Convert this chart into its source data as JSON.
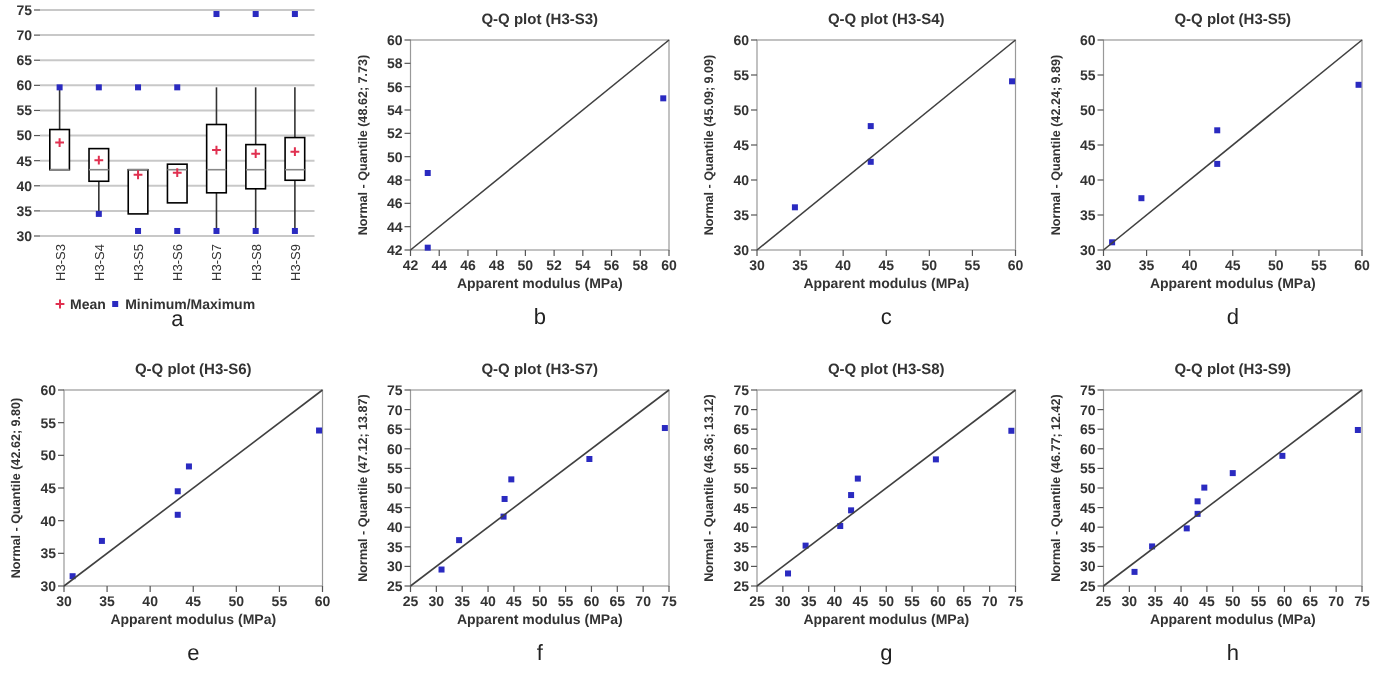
{
  "chart_data": [
    {
      "type": "box",
      "categories": [
        "H3-S3",
        "H3-S4",
        "H3-S5",
        "H3-S6",
        "H3-S7",
        "H3-S8",
        "H3-S9"
      ],
      "boxes": [
        {
          "low": 43.2,
          "q1": 43.2,
          "median": 43.2,
          "q3": 51.2,
          "high": 59.6
        },
        {
          "low": 34.4,
          "q1": 40.9,
          "median": 43.2,
          "q3": 47.4,
          "high": 47.4
        },
        {
          "low": 34.4,
          "q1": 34.4,
          "median": 43.2,
          "q3": 43.2,
          "high": 43.2
        },
        {
          "low": 36.6,
          "q1": 36.6,
          "median": 43.2,
          "q3": 44.3,
          "high": 44.3
        },
        {
          "low": 31,
          "q1": 38.6,
          "median": 43.2,
          "q3": 52.2,
          "high": 59.6
        },
        {
          "low": 31,
          "q1": 39.4,
          "median": 43.2,
          "q3": 48.2,
          "high": 59.6
        },
        {
          "low": 31,
          "q1": 41.1,
          "median": 43.2,
          "q3": 49.6,
          "high": 59.6
        }
      ],
      "series": [
        {
          "type": "scatter",
          "name": "Mean",
          "color": "#e03050",
          "marker": "cross",
          "x": [
            "H3-S3",
            "H3-S4",
            "H3-S5",
            "H3-S6",
            "H3-S7",
            "H3-S8",
            "H3-S9"
          ],
          "values": [
            48.6,
            45.1,
            42.2,
            42.6,
            47.1,
            46.4,
            46.8
          ]
        },
        {
          "type": "scatter",
          "name": "Minimum/Maximum",
          "color": "#2a2ac0",
          "marker": "square",
          "x": [
            "H3-S3",
            "H3-S4",
            "H3-S4",
            "H3-S5",
            "H3-S5",
            "H3-S6",
            "H3-S6",
            "H3-S7",
            "H3-S7",
            "H3-S8",
            "H3-S8",
            "H3-S9",
            "H3-S9"
          ],
          "values": [
            59.6,
            34.4,
            59.6,
            31,
            59.6,
            31,
            59.6,
            31,
            74.2,
            31,
            74.2,
            31,
            74.2
          ]
        }
      ],
      "ylim": [
        30,
        75
      ],
      "yticks": [
        30,
        35,
        40,
        45,
        50,
        55,
        60,
        65,
        70,
        75
      ],
      "grid": "y",
      "legend": "bottom",
      "annotations": [
        "a"
      ]
    },
    {
      "type": "scatter",
      "title": "Q-Q plot (H3-S3)",
      "xlabel": "Apparent modulus (MPa)",
      "ylabel": "Normal - Quantile (48.62; 7.73)",
      "xlim": [
        42,
        60
      ],
      "xticks": [
        42,
        44,
        46,
        48,
        50,
        52,
        54,
        56,
        58,
        60
      ],
      "ylim": [
        42,
        60
      ],
      "yticks": [
        42,
        44,
        46,
        48,
        50,
        52,
        54,
        56,
        58,
        60
      ],
      "series": [
        {
          "color": "#2a2ac0",
          "marker": "square",
          "x": [
            43.2,
            43.2,
            59.6
          ],
          "values": [
            42.2,
            48.6,
            55.0
          ]
        },
        {
          "type": "line",
          "color": "#404040",
          "x": [
            42,
            60
          ],
          "values": [
            42,
            60
          ]
        }
      ],
      "annotations": [
        "b"
      ]
    },
    {
      "type": "scatter",
      "title": "Q-Q plot (H3-S4)",
      "xlabel": "Apparent modulus (MPa)",
      "ylabel": "Normal - Quantile (45.09; 9.09)",
      "xlim": [
        30,
        60
      ],
      "xticks": [
        30,
        35,
        40,
        45,
        50,
        55,
        60
      ],
      "ylim": [
        30,
        60
      ],
      "yticks": [
        30,
        35,
        40,
        45,
        50,
        55,
        60
      ],
      "series": [
        {
          "color": "#2a2ac0",
          "marker": "square",
          "x": [
            34.4,
            43.2,
            43.2,
            59.6
          ],
          "values": [
            36.1,
            42.6,
            47.7,
            54.1
          ]
        },
        {
          "type": "line",
          "color": "#404040",
          "x": [
            30,
            60
          ],
          "values": [
            30,
            60
          ]
        }
      ],
      "annotations": [
        "c"
      ]
    },
    {
      "type": "scatter",
      "title": "Q-Q plot (H3-S5)",
      "xlabel": "Apparent modulus (MPa)",
      "ylabel": "Normal - Quantile (42.24; 9.89)",
      "xlim": [
        30,
        60
      ],
      "xticks": [
        30,
        35,
        40,
        45,
        50,
        55,
        60
      ],
      "ylim": [
        30,
        60
      ],
      "yticks": [
        30,
        35,
        40,
        45,
        50,
        55,
        60
      ],
      "series": [
        {
          "color": "#2a2ac0",
          "marker": "square",
          "x": [
            31,
            34.4,
            43.2,
            43.2,
            59.6
          ],
          "values": [
            31.1,
            37.4,
            42.3,
            47.1,
            53.6
          ]
        },
        {
          "type": "line",
          "color": "#404040",
          "x": [
            30,
            60
          ],
          "values": [
            30,
            60
          ]
        }
      ],
      "annotations": [
        "d"
      ]
    },
    {
      "type": "scatter",
      "title": "Q-Q plot (H3-S6)",
      "xlabel": "Apparent modulus (MPa)",
      "ylabel": "Normal - Quantile (42.62; 9.80)",
      "xlim": [
        30,
        60
      ],
      "xticks": [
        30,
        35,
        40,
        45,
        50,
        55,
        60
      ],
      "ylim": [
        30,
        60
      ],
      "yticks": [
        30,
        35,
        40,
        45,
        50,
        55,
        60
      ],
      "series": [
        {
          "color": "#2a2ac0",
          "marker": "square",
          "x": [
            31,
            34.4,
            43.2,
            43.2,
            44.5,
            59.6
          ],
          "values": [
            31.5,
            36.9,
            40.9,
            44.5,
            48.3,
            53.8
          ]
        },
        {
          "type": "line",
          "color": "#404040",
          "x": [
            30,
            60
          ],
          "values": [
            30,
            60
          ]
        }
      ],
      "annotations": [
        "e"
      ]
    },
    {
      "type": "scatter",
      "title": "Q-Q plot (H3-S7)",
      "xlabel": "Apparent modulus (MPa)",
      "ylabel": "Normal - Quantile (47.12; 13.87)",
      "xlim": [
        25,
        75
      ],
      "xticks": [
        25,
        30,
        35,
        40,
        45,
        50,
        55,
        60,
        65,
        70,
        75
      ],
      "ylim": [
        25,
        75
      ],
      "yticks": [
        25,
        30,
        35,
        40,
        45,
        50,
        55,
        60,
        65,
        70,
        75
      ],
      "series": [
        {
          "color": "#2a2ac0",
          "marker": "square",
          "x": [
            31,
            34.4,
            43,
            43.2,
            44.5,
            59.6,
            74.2
          ],
          "values": [
            29.2,
            36.7,
            42.7,
            47.2,
            52.2,
            57.4,
            65.3
          ]
        },
        {
          "type": "line",
          "color": "#404040",
          "x": [
            25,
            75
          ],
          "values": [
            25,
            75
          ]
        }
      ],
      "annotations": [
        "f"
      ]
    },
    {
      "type": "scatter",
      "title": "Q-Q plot (H3-S8)",
      "xlabel": "Apparent modulus (MPa)",
      "ylabel": "Normal - Quantile (46.36; 13.12)",
      "xlim": [
        25,
        75
      ],
      "xticks": [
        25,
        30,
        35,
        40,
        45,
        50,
        55,
        60,
        65,
        70,
        75
      ],
      "ylim": [
        25,
        75
      ],
      "yticks": [
        25,
        30,
        35,
        40,
        45,
        50,
        55,
        60,
        65,
        70,
        75
      ],
      "series": [
        {
          "color": "#2a2ac0",
          "marker": "square",
          "x": [
            31,
            34.4,
            41.1,
            43.2,
            43.2,
            44.5,
            59.6,
            74.2
          ],
          "values": [
            28.2,
            35.3,
            40.3,
            44.3,
            48.2,
            52.4,
            57.3,
            64.6
          ]
        },
        {
          "type": "line",
          "color": "#404040",
          "x": [
            25,
            75
          ],
          "values": [
            25,
            75
          ]
        }
      ],
      "annotations": [
        "g"
      ]
    },
    {
      "type": "scatter",
      "title": "Q-Q plot (H3-S9)",
      "xlabel": "Apparent modulus (MPa)",
      "ylabel": "Normal - Quantile (46.77; 12.42)",
      "xlim": [
        25,
        75
      ],
      "xticks": [
        25,
        30,
        35,
        40,
        45,
        50,
        55,
        60,
        65,
        70,
        75
      ],
      "ylim": [
        25,
        75
      ],
      "yticks": [
        25,
        30,
        35,
        40,
        45,
        50,
        55,
        60,
        65,
        70,
        75
      ],
      "series": [
        {
          "color": "#2a2ac0",
          "marker": "square",
          "x": [
            31,
            34.4,
            41.1,
            43.2,
            43.2,
            44.5,
            50,
            59.6,
            74.2
          ],
          "values": [
            28.6,
            35.1,
            39.7,
            43.4,
            46.6,
            50.1,
            53.8,
            58.2,
            64.8
          ]
        },
        {
          "type": "line",
          "color": "#404040",
          "x": [
            25,
            75
          ],
          "values": [
            25,
            75
          ]
        }
      ],
      "annotations": [
        "h"
      ]
    }
  ]
}
